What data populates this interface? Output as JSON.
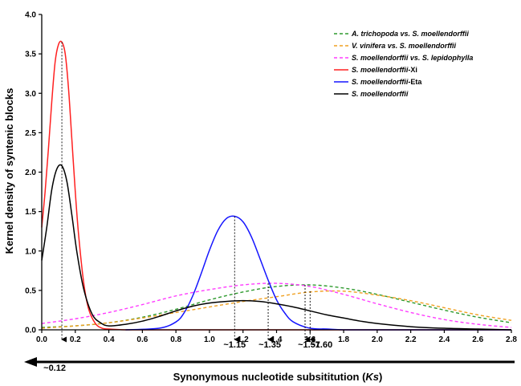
{
  "chart_data": {
    "type": "line",
    "title": "",
    "xlabel_parts": [
      "Synonymous nucleotide subsititution (",
      "Ks",
      ")"
    ],
    "ylabel": "Kernel density of syntenic blocks",
    "xlim": [
      0.0,
      2.8
    ],
    "ylim": [
      0.0,
      4.0
    ],
    "x_ticks": [
      "0.0",
      "0.2",
      "0.4",
      "0.6",
      "0.8",
      "1.0",
      "1.2",
      "1.4",
      "1.6",
      "1.8",
      "2.0",
      "2.2",
      "2.4",
      "2.6",
      "2.8"
    ],
    "y_ticks": [
      "0.0",
      "0.5",
      "1.0",
      "1.5",
      "2.0",
      "2.5",
      "3.0",
      "3.5",
      "4.0"
    ],
    "grid": false,
    "legend_position": "top-right",
    "series": [
      {
        "name_parts": [
          "A. trichopoda",
          " vs. ",
          "S. moellendorffii"
        ],
        "color": "#2e9a2e",
        "dash": true,
        "x": [
          0.0,
          0.2,
          0.4,
          0.6,
          0.8,
          1.0,
          1.2,
          1.4,
          1.6,
          1.8,
          2.0,
          2.2,
          2.4,
          2.6,
          2.8
        ],
        "y": [
          0.03,
          0.05,
          0.09,
          0.16,
          0.26,
          0.38,
          0.48,
          0.55,
          0.57,
          0.53,
          0.45,
          0.35,
          0.25,
          0.16,
          0.09
        ]
      },
      {
        "name_parts": [
          "V. vinifera",
          " vs. ",
          "S. moellendorffii"
        ],
        "color": "#f0a020",
        "dash": true,
        "x": [
          0.0,
          0.2,
          0.4,
          0.6,
          0.8,
          1.0,
          1.2,
          1.4,
          1.6,
          1.8,
          2.0,
          2.2,
          2.4,
          2.6,
          2.8
        ],
        "y": [
          0.02,
          0.05,
          0.09,
          0.15,
          0.22,
          0.29,
          0.36,
          0.42,
          0.48,
          0.49,
          0.44,
          0.37,
          0.28,
          0.19,
          0.12
        ]
      },
      {
        "name_parts": [
          "S. moellendorffii",
          " vs. ",
          "S. lepidophylla"
        ],
        "color": "#ff3cff",
        "dash": true,
        "x": [
          0.0,
          0.2,
          0.4,
          0.6,
          0.8,
          1.0,
          1.2,
          1.4,
          1.6,
          1.8,
          2.0,
          2.2,
          2.4,
          2.6,
          2.8
        ],
        "y": [
          0.08,
          0.14,
          0.22,
          0.32,
          0.43,
          0.51,
          0.57,
          0.59,
          0.55,
          0.45,
          0.33,
          0.22,
          0.13,
          0.07,
          0.03
        ]
      },
      {
        "name_parts": [
          "S. moellendorffii",
          "-Xi",
          ""
        ],
        "color": "#ff2020",
        "dash": false,
        "x": [
          0.0,
          0.02,
          0.04,
          0.06,
          0.08,
          0.1,
          0.12,
          0.14,
          0.16,
          0.18,
          0.2,
          0.22,
          0.25,
          0.28,
          0.32,
          0.36,
          0.4,
          0.5,
          0.6,
          0.8,
          1.0,
          1.5,
          2.0,
          2.8
        ],
        "y": [
          1.3,
          1.75,
          2.3,
          2.9,
          3.4,
          3.62,
          3.65,
          3.5,
          3.05,
          2.4,
          1.75,
          1.2,
          0.6,
          0.26,
          0.08,
          0.02,
          0.01,
          0.0,
          0.0,
          0.0,
          0.0,
          0.0,
          0.0,
          0.0
        ]
      },
      {
        "name_parts": [
          "S. moellendorffii",
          "-Eta",
          ""
        ],
        "color": "#1515ff",
        "dash": false,
        "x": [
          0.5,
          0.7,
          0.8,
          0.85,
          0.9,
          0.95,
          1.0,
          1.05,
          1.1,
          1.15,
          1.2,
          1.25,
          1.3,
          1.35,
          1.4,
          1.45,
          1.5,
          1.6,
          1.7,
          1.8,
          2.0,
          2.8
        ],
        "y": [
          0.0,
          0.02,
          0.1,
          0.22,
          0.43,
          0.71,
          1.01,
          1.26,
          1.41,
          1.44,
          1.37,
          1.18,
          0.91,
          0.63,
          0.38,
          0.21,
          0.1,
          0.02,
          0.01,
          0.0,
          0.0,
          0.0
        ]
      },
      {
        "name_parts": [
          "S. moellendorffii",
          "",
          ""
        ],
        "color": "#000000",
        "dash": false,
        "x": [
          0.0,
          0.03,
          0.06,
          0.09,
          0.12,
          0.15,
          0.18,
          0.21,
          0.25,
          0.3,
          0.35,
          0.4,
          0.5,
          0.6,
          0.7,
          0.8,
          0.9,
          1.0,
          1.1,
          1.2,
          1.3,
          1.4,
          1.5,
          1.6,
          1.7,
          1.8,
          1.9,
          2.0,
          2.2,
          2.4,
          2.6,
          2.8
        ],
        "y": [
          0.88,
          1.3,
          1.78,
          2.04,
          2.08,
          1.88,
          1.45,
          0.98,
          0.52,
          0.2,
          0.09,
          0.05,
          0.07,
          0.11,
          0.17,
          0.24,
          0.3,
          0.34,
          0.36,
          0.37,
          0.36,
          0.33,
          0.29,
          0.24,
          0.19,
          0.15,
          0.11,
          0.08,
          0.04,
          0.02,
          0.01,
          0.0
        ]
      }
    ],
    "annotations": [
      {
        "x": 0.12,
        "label": "~0.12",
        "top_y": 3.65
      },
      {
        "x": 1.15,
        "label": "~1.15",
        "top_y": 1.44
      },
      {
        "x": 1.35,
        "label": "~1.35",
        "top_y": 0.59
      },
      {
        "x": 1.57,
        "label": "~1.57",
        "top_y": 0.57
      },
      {
        "x": 1.6,
        "label": "~1.60",
        "top_y": 0.49
      }
    ]
  }
}
